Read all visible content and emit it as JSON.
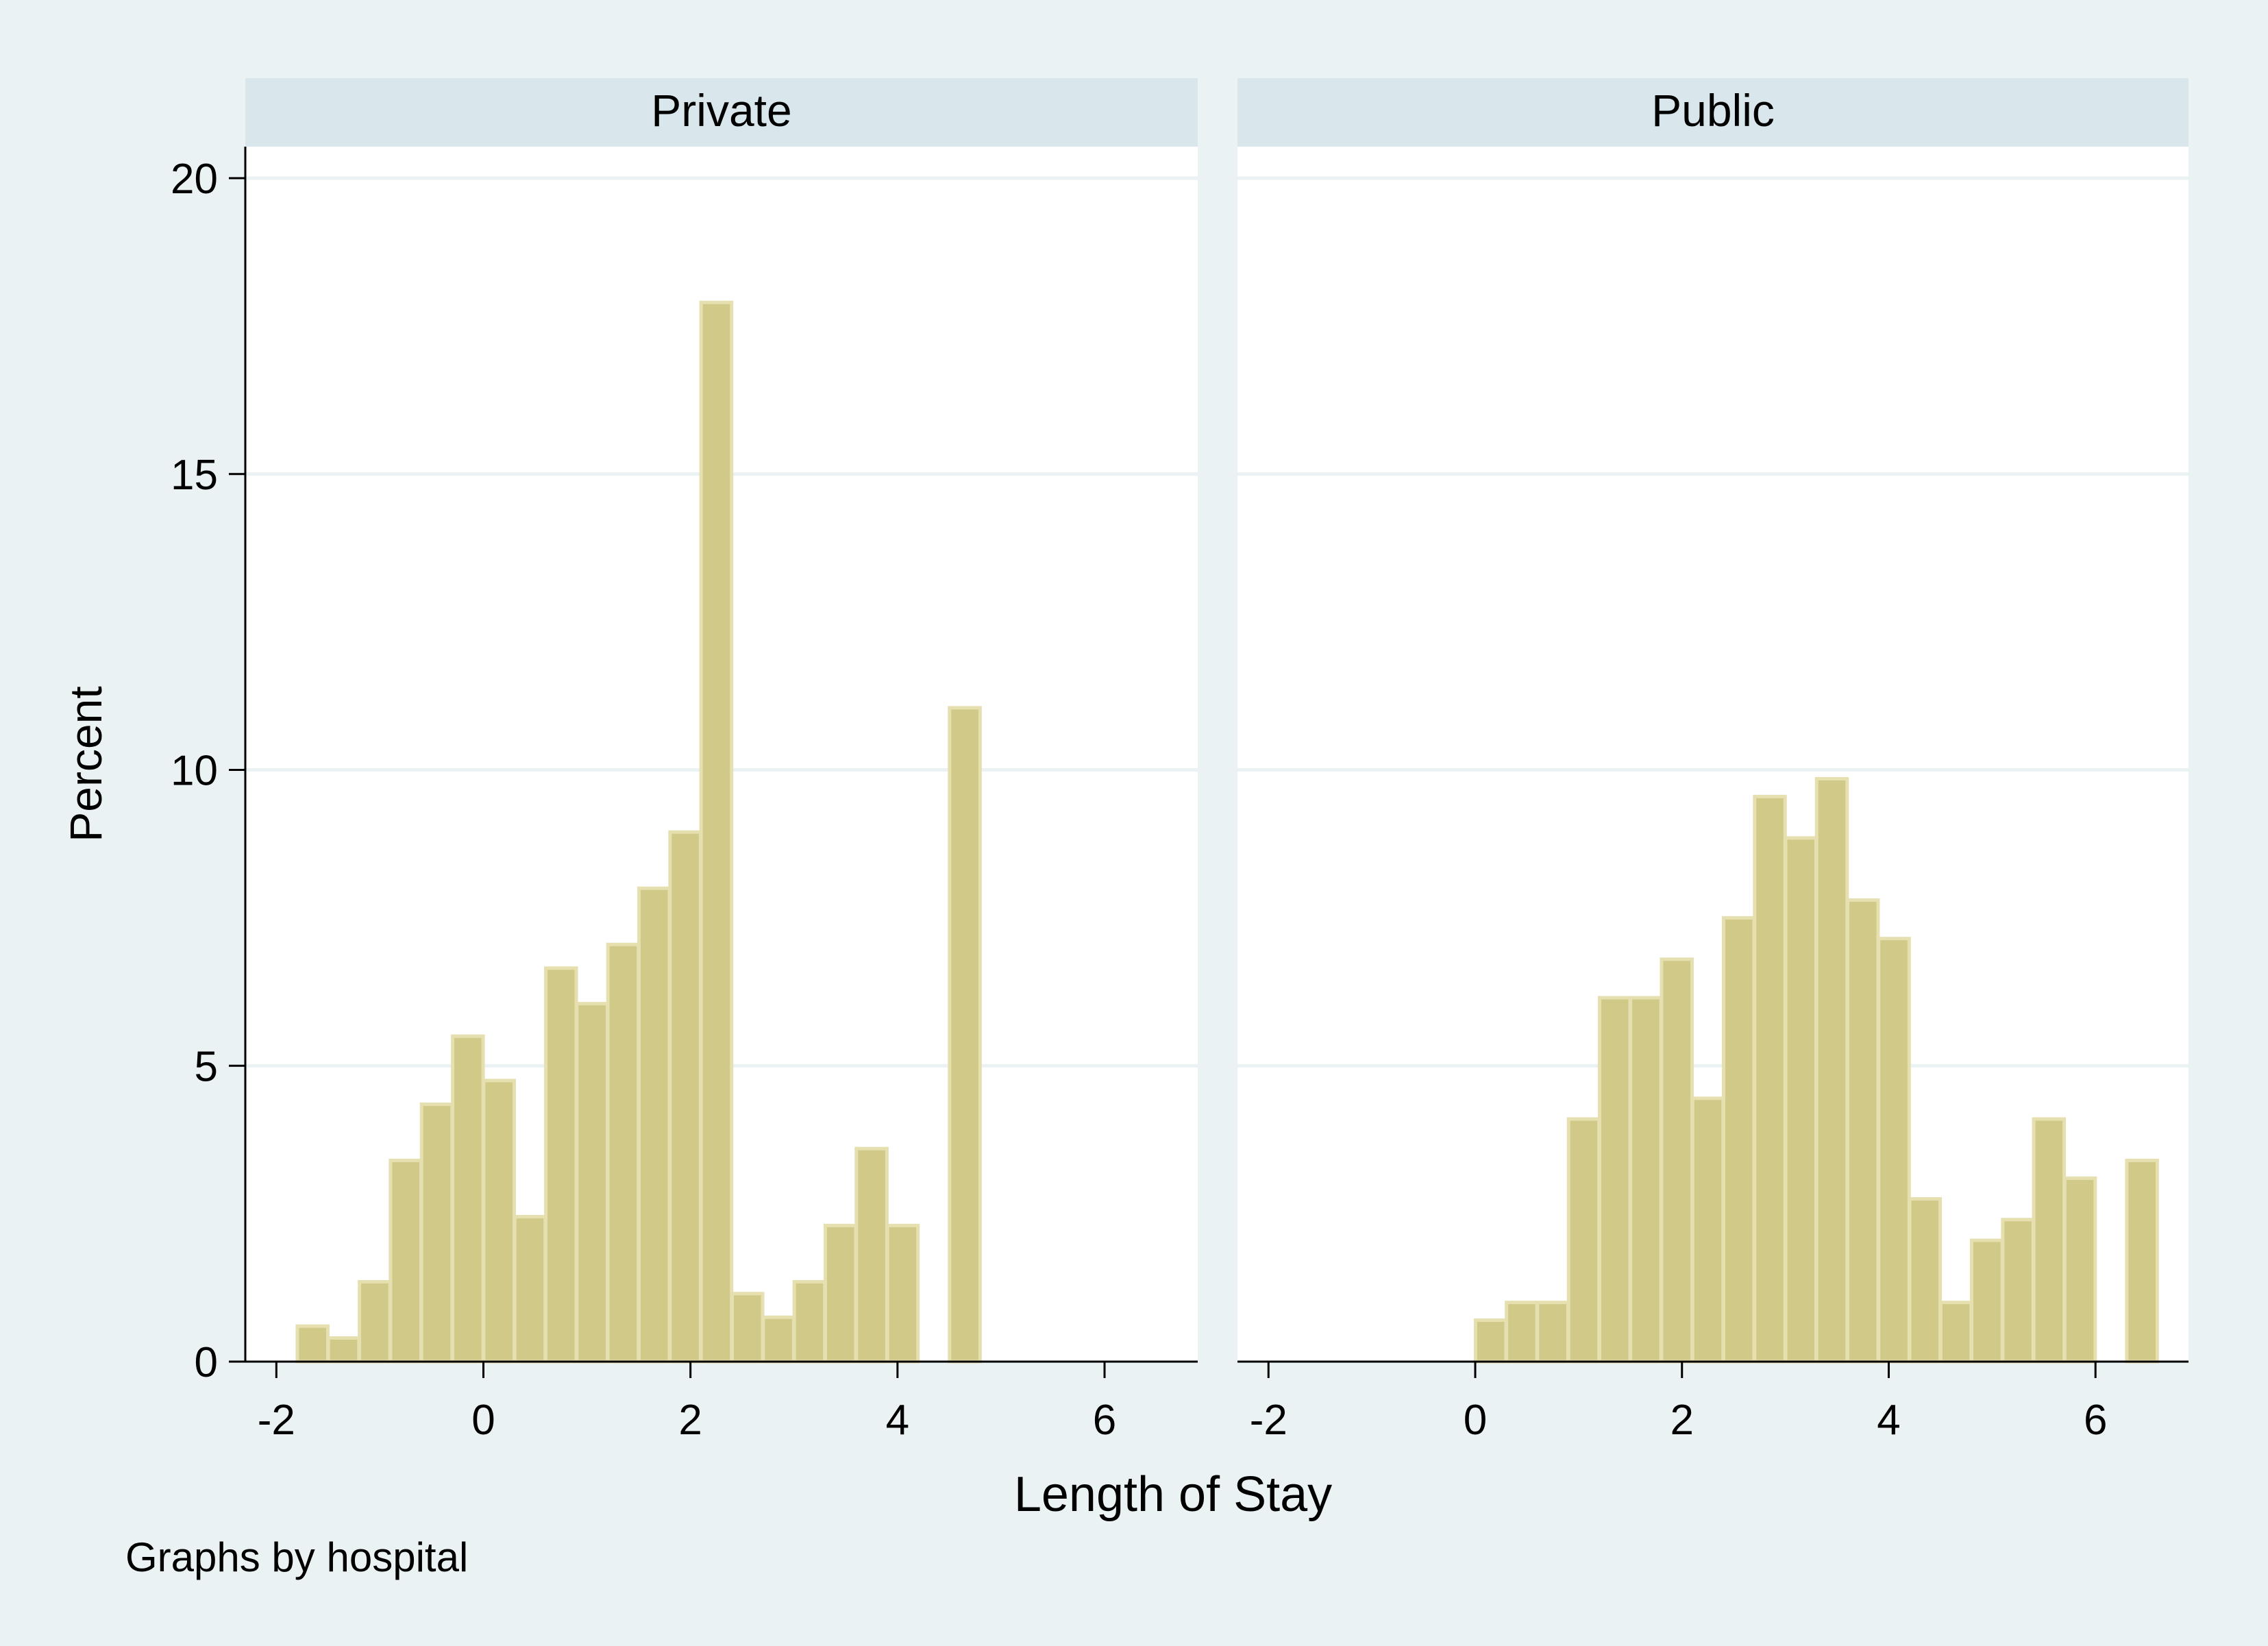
{
  "chart_data": {
    "type": "bar",
    "title": "",
    "xlabel": "Length of Stay",
    "ylabel": "Percent",
    "note": "Graphs by hospital",
    "ylim": [
      0,
      20
    ],
    "yticks": [
      0,
      5,
      10,
      15,
      20
    ],
    "xlim": [
      -2.3,
      6.9
    ],
    "xticks": [
      -2,
      0,
      2,
      4,
      6
    ],
    "bin_width": 0.295,
    "grid": true,
    "colors": {
      "background": "#eaf2f3",
      "plot_background": "#ffffff",
      "strip": "#d9e6eb",
      "bar_fill": "#d1c987",
      "bar_edge": "#e6e0b0",
      "gridline": "#eaf2f3",
      "axis": "#000000"
    },
    "panels": [
      {
        "label": "Private",
        "bins": [
          {
            "x": -1.65,
            "value": 0.6
          },
          {
            "x": -1.35,
            "value": 0.4
          },
          {
            "x": -1.05,
            "value": 1.35
          },
          {
            "x": -0.75,
            "value": 3.4
          },
          {
            "x": -0.45,
            "value": 4.35
          },
          {
            "x": -0.15,
            "value": 5.5
          },
          {
            "x": 0.15,
            "value": 4.75
          },
          {
            "x": 0.45,
            "value": 2.45
          },
          {
            "x": 0.75,
            "value": 6.65
          },
          {
            "x": 1.05,
            "value": 6.05
          },
          {
            "x": 1.35,
            "value": 7.05
          },
          {
            "x": 1.65,
            "value": 8.0
          },
          {
            "x": 1.95,
            "value": 8.95
          },
          {
            "x": 2.25,
            "value": 17.9
          },
          {
            "x": 2.55,
            "value": 1.15
          },
          {
            "x": 2.85,
            "value": 0.75
          },
          {
            "x": 3.15,
            "value": 1.35
          },
          {
            "x": 3.45,
            "value": 2.3
          },
          {
            "x": 3.75,
            "value": 3.6
          },
          {
            "x": 4.05,
            "value": 2.3
          },
          {
            "x": 4.35,
            "value": 0
          },
          {
            "x": 4.65,
            "value": 11.05
          }
        ]
      },
      {
        "label": "Public",
        "bins": [
          {
            "x": 0.15,
            "value": 0.7
          },
          {
            "x": 0.45,
            "value": 1.0
          },
          {
            "x": 0.75,
            "value": 1.0
          },
          {
            "x": 1.05,
            "value": 4.1
          },
          {
            "x": 1.35,
            "value": 6.15
          },
          {
            "x": 1.65,
            "value": 6.15
          },
          {
            "x": 1.95,
            "value": 6.8
          },
          {
            "x": 2.25,
            "value": 4.45
          },
          {
            "x": 2.55,
            "value": 7.5
          },
          {
            "x": 2.85,
            "value": 9.55
          },
          {
            "x": 3.15,
            "value": 8.85
          },
          {
            "x": 3.45,
            "value": 9.85
          },
          {
            "x": 3.75,
            "value": 7.8
          },
          {
            "x": 4.05,
            "value": 7.15
          },
          {
            "x": 4.35,
            "value": 2.75
          },
          {
            "x": 4.65,
            "value": 1.0
          },
          {
            "x": 4.95,
            "value": 2.05
          },
          {
            "x": 5.25,
            "value": 2.4
          },
          {
            "x": 5.55,
            "value": 4.1
          },
          {
            "x": 5.85,
            "value": 3.1
          },
          {
            "x": 6.15,
            "value": 0
          },
          {
            "x": 6.45,
            "value": 3.4
          }
        ]
      }
    ]
  }
}
